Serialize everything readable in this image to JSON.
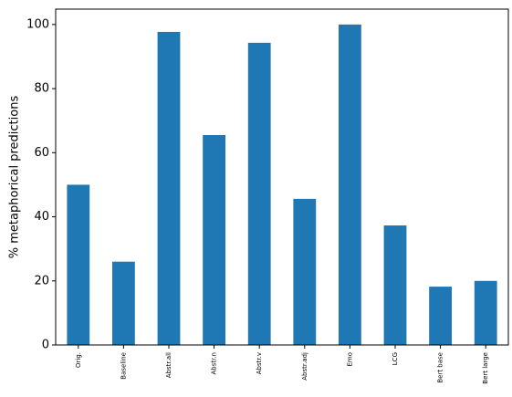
{
  "chart_data": {
    "type": "bar",
    "y_label": "% metaphorical predictions",
    "categories": [
      "Orig.",
      "Baseline",
      "Abstr.all",
      "Abstr.n",
      "Abstr.v",
      "Abstr.adj",
      "Emo",
      "LCG",
      "Bert base",
      "Bert large"
    ],
    "values": [
      50,
      26,
      97.7,
      65.5,
      94.3,
      45.6,
      100,
      37.3,
      18.2,
      20
    ],
    "color": "#1f77b4",
    "ylim": [
      0,
      104.8
    ],
    "yticks": [
      0,
      20,
      40,
      60,
      80,
      100
    ],
    "grid": false
  }
}
